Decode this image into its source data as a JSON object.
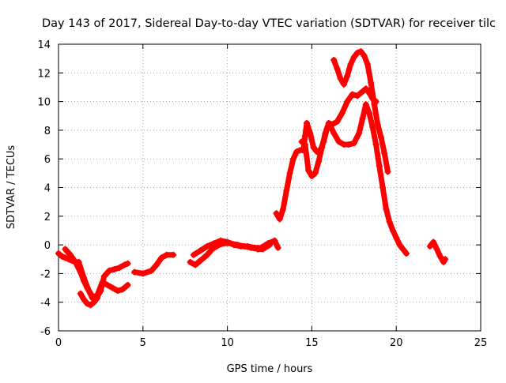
{
  "chart_data": {
    "type": "scatter",
    "title": "Day 143 of 2017, Sidereal Day-to-day VTEC variation (SDTVAR) for receiver tilc",
    "xlabel": "GPS time / hours",
    "ylabel": "SDTVAR / TECUs",
    "xlim": [
      0,
      25
    ],
    "ylim": [
      -6,
      14
    ],
    "xticks": [
      0,
      5,
      10,
      15,
      20,
      25
    ],
    "yticks": [
      -6,
      -4,
      -2,
      0,
      2,
      4,
      6,
      8,
      10,
      12,
      14
    ],
    "grid": true,
    "marker": "+",
    "color": "#ff0000",
    "series": [
      {
        "x": [
          0.0,
          0.2,
          0.4,
          0.6,
          0.8,
          1.0,
          1.2,
          1.5,
          1.8,
          2.0,
          2.3,
          2.6,
          2.9,
          3.2,
          3.5,
          3.8,
          4.1
        ],
        "y": [
          -0.6,
          -0.8,
          -0.9,
          -1.0,
          -1.1,
          -1.2,
          -1.2,
          -2.3,
          -3.2,
          -3.7,
          -3.5,
          -2.6,
          -2.8,
          -3.0,
          -3.2,
          -3.1,
          -2.8
        ]
      },
      {
        "x": [
          0.4,
          0.7,
          1.0,
          1.3,
          1.5,
          1.7,
          1.9,
          2.0,
          2.2,
          2.5,
          2.7,
          3.0,
          3.3,
          3.6,
          3.9,
          4.1
        ],
        "y": [
          -0.3,
          -0.7,
          -1.2,
          -1.9,
          -2.5,
          -3.0,
          -3.4,
          -3.6,
          -3.8,
          -3.2,
          -2.2,
          -1.8,
          -1.7,
          -1.6,
          -1.4,
          -1.3
        ]
      },
      {
        "x": [
          1.3,
          1.5,
          1.7,
          1.9,
          2.1,
          2.3
        ],
        "y": [
          -3.4,
          -3.8,
          -4.1,
          -4.2,
          -4.0,
          -3.7
        ]
      },
      {
        "x": [
          4.5,
          5.0,
          5.5,
          5.8,
          6.1,
          6.4,
          6.8
        ],
        "y": [
          -1.9,
          -2.0,
          -1.8,
          -1.4,
          -0.9,
          -0.7,
          -0.7
        ]
      },
      {
        "x": [
          7.8,
          8.1,
          8.4,
          8.8,
          9.1,
          9.5,
          9.8,
          10.2,
          10.6,
          11.0,
          11.4,
          11.8,
          12.1,
          12.5
        ],
        "y": [
          -1.2,
          -1.4,
          -1.1,
          -0.7,
          -0.3,
          0.0,
          0.1,
          0.1,
          0.0,
          -0.1,
          -0.2,
          -0.3,
          -0.3,
          0.0
        ]
      },
      {
        "x": [
          8.0,
          8.4,
          8.8,
          9.2,
          9.6,
          10.0,
          10.4,
          10.8,
          11.2,
          11.6,
          12.0,
          12.4,
          12.8,
          13.0
        ],
        "y": [
          -0.7,
          -0.4,
          -0.1,
          0.1,
          0.3,
          0.2,
          0.0,
          -0.1,
          -0.1,
          -0.2,
          -0.2,
          0.1,
          0.3,
          -0.2
        ]
      },
      {
        "x": [
          12.9,
          13.1,
          13.3,
          13.5,
          13.7,
          13.9,
          14.1,
          14.3,
          14.5,
          14.6,
          14.7,
          14.9,
          15.1,
          15.3,
          15.5,
          15.7,
          15.9,
          16.1,
          16.3,
          16.6,
          16.9,
          17.2,
          17.5,
          17.8,
          18.0,
          18.2,
          18.4,
          18.6,
          18.8,
          19.0,
          19.2,
          19.4,
          19.6,
          19.8,
          20.0,
          20.2,
          20.4,
          20.6
        ],
        "y": [
          2.2,
          1.8,
          2.5,
          3.8,
          5.0,
          6.0,
          6.5,
          6.6,
          6.6,
          7.6,
          8.5,
          7.8,
          6.8,
          6.5,
          6.6,
          7.2,
          8.1,
          8.3,
          7.8,
          7.2,
          7.0,
          7.0,
          7.1,
          7.8,
          8.8,
          9.8,
          9.2,
          8.2,
          7.0,
          5.5,
          4.0,
          2.5,
          1.6,
          1.0,
          0.5,
          0.0,
          -0.3,
          -0.6
        ]
      },
      {
        "x": [
          14.4,
          14.6,
          14.8,
          15.0,
          15.2,
          15.4,
          15.6,
          15.8,
          16.0,
          16.2,
          16.5,
          16.8,
          17.1,
          17.4,
          17.7,
          18.0,
          18.2,
          18.4,
          18.6,
          18.8
        ],
        "y": [
          7.2,
          7.0,
          5.2,
          4.8,
          5.0,
          5.8,
          6.8,
          7.8,
          8.5,
          8.4,
          8.6,
          9.2,
          10.0,
          10.5,
          10.4,
          10.7,
          10.9,
          10.6,
          10.2,
          10.0
        ]
      },
      {
        "x": [
          16.3,
          16.5,
          16.7,
          16.9,
          17.1,
          17.3,
          17.5,
          17.7,
          17.9,
          18.1,
          18.3,
          18.5,
          18.7,
          18.9,
          19.1,
          19.3,
          19.5
        ],
        "y": [
          12.9,
          12.3,
          11.6,
          11.2,
          11.8,
          12.6,
          13.1,
          13.4,
          13.5,
          13.2,
          12.6,
          11.3,
          9.8,
          8.4,
          7.5,
          6.4,
          5.1
        ]
      },
      {
        "x": [
          22.0,
          22.2,
          22.4,
          22.6,
          22.8,
          22.9
        ],
        "y": [
          -0.1,
          0.2,
          -0.3,
          -0.8,
          -1.2,
          -1.0
        ]
      }
    ]
  }
}
